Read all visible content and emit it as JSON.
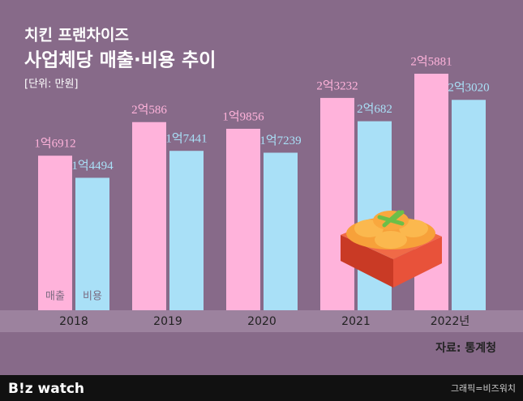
{
  "chart_data": {
    "type": "bar",
    "title": "치킨 프랜차이즈",
    "subtitle": "사업체당 매출·비용 추이",
    "unit_label": "[단위: 만원]",
    "source": "자료: 통계청",
    "categories": [
      "2018",
      "2019",
      "2020",
      "2021",
      "2022년"
    ],
    "series": [
      {
        "name": "매출",
        "color": "#ffb3db",
        "values": [
          16912,
          20586,
          19856,
          23232,
          25881
        ],
        "value_labels": [
          "1억6912",
          "2억586",
          "1억9856",
          "2억3232",
          "2억5881"
        ]
      },
      {
        "name": "비용",
        "color": "#a9e0f7",
        "values": [
          14494,
          17441,
          17239,
          20682,
          23020
        ],
        "value_labels": [
          "1억4494",
          "1억7441",
          "1억7239",
          "2억682",
          "2억3020"
        ]
      }
    ]
  },
  "footer": {
    "logo": "B!z watch",
    "credit": "그래픽=비즈워치"
  }
}
